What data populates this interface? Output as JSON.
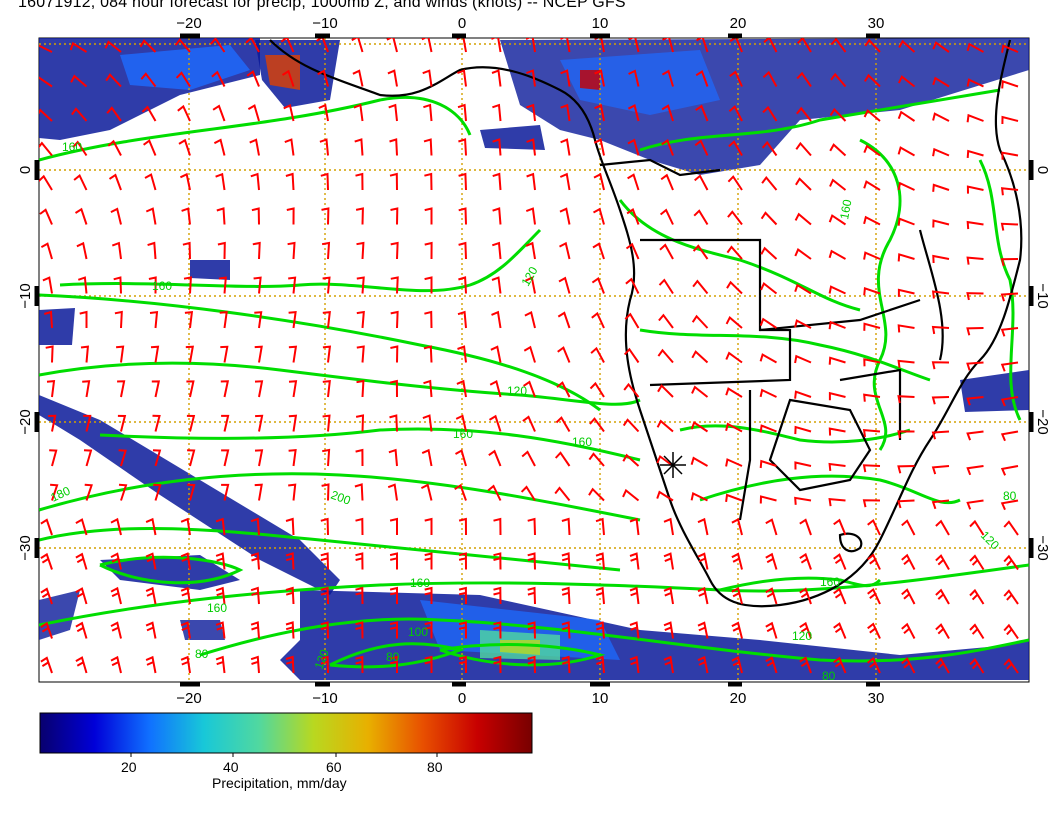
{
  "title": "16071912, 084 hour forecast for precip, 1000mb Z, and winds (knots) -- NCEP GFS",
  "map": {
    "lon_ticks": [
      "−20",
      "−10",
      "0",
      "10",
      "20",
      "30"
    ],
    "lat_ticks": [
      "0",
      "−10",
      "−20",
      "−30"
    ],
    "contour_labels": [
      "160",
      "160",
      "120",
      "120",
      "160",
      "180",
      "200",
      "160",
      "160",
      "160",
      "100",
      "80",
      "120",
      "80",
      "160",
      "120",
      "80",
      "120",
      "160",
      "80"
    ],
    "colors": {
      "wind_barbs": "#ff0000",
      "contours": "#00dd00",
      "coastline": "#000000",
      "grid": "#d4a000"
    }
  },
  "colorbar": {
    "label": "Precipitation, mm/day",
    "ticks": [
      "20",
      "40",
      "60",
      "80"
    ],
    "colors": [
      "#08006e",
      "#0000d8",
      "#1070ff",
      "#18c8d8",
      "#50d8a0",
      "#b8d820",
      "#e8b000",
      "#e85000",
      "#c80000",
      "#780000"
    ]
  }
}
